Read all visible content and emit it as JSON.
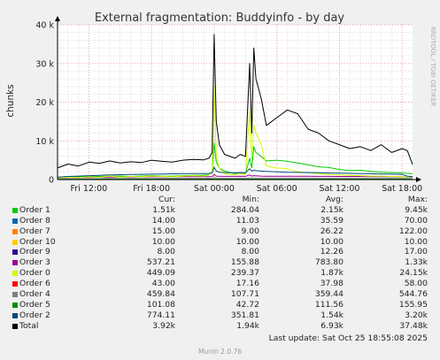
{
  "chart_data": {
    "type": "line",
    "title": "External fragmentation: Buddyinfo - by day",
    "ylabel": "chunks",
    "xlabel": "",
    "ylim": [
      0,
      40000
    ],
    "y_ticks": [
      {
        "value": 0,
        "label": "0"
      },
      {
        "value": 10000,
        "label": "10 k"
      },
      {
        "value": 20000,
        "label": "20 k"
      },
      {
        "value": 30000,
        "label": "30 k"
      },
      {
        "value": 40000,
        "label": "40 k"
      }
    ],
    "xlim": [
      "Fri 09:00",
      "Sat 19:00"
    ],
    "x_ticks": [
      "Fri 12:00",
      "Fri 18:00",
      "Sat 00:00",
      "Sat 06:00",
      "Sat 12:00",
      "Sat 18:00"
    ],
    "grid": true,
    "x_hours": [
      9,
      10,
      11,
      12,
      13,
      14,
      15,
      16,
      17,
      18,
      19,
      20,
      21,
      22,
      23,
      23.5,
      23.8,
      24,
      24.2,
      24.5,
      25,
      26,
      26.5,
      27,
      27.4,
      27.6,
      27.8,
      28,
      28.5,
      29,
      30,
      31,
      32,
      33,
      34,
      35,
      36,
      37,
      38,
      39,
      40,
      41,
      42,
      42.5,
      43
    ],
    "series": [
      {
        "name": "Order 1",
        "color": "#00cc00",
        "values": [
          600,
          800,
          700,
          900,
          800,
          900,
          900,
          800,
          900,
          1000,
          900,
          900,
          1000,
          1100,
          1100,
          1300,
          2000,
          9450,
          4500,
          3000,
          2200,
          1500,
          1800,
          1600,
          5500,
          3000,
          8500,
          7000,
          6000,
          4800,
          5000,
          4700,
          4300,
          3800,
          3300,
          3100,
          2600,
          2300,
          2400,
          2100,
          1900,
          1800,
          1700,
          1600,
          1510
        ]
      },
      {
        "name": "Order 8",
        "color": "#0066b3",
        "values": [
          40,
          40,
          40,
          40,
          40,
          40,
          40,
          40,
          40,
          40,
          40,
          40,
          40,
          40,
          40,
          40,
          40,
          70,
          40,
          40,
          40,
          40,
          40,
          40,
          40,
          40,
          40,
          40,
          40,
          40,
          40,
          40,
          40,
          40,
          40,
          40,
          40,
          40,
          40,
          40,
          40,
          40,
          40,
          30,
          14
        ]
      },
      {
        "name": "Order 7",
        "color": "#ff8000",
        "values": [
          20,
          25,
          25,
          25,
          25,
          25,
          25,
          25,
          25,
          25,
          25,
          25,
          25,
          25,
          25,
          25,
          25,
          122,
          30,
          30,
          28,
          28,
          28,
          28,
          60,
          40,
          40,
          35,
          30,
          30,
          30,
          28,
          28,
          28,
          28,
          28,
          28,
          26,
          26,
          26,
          25,
          25,
          25,
          20,
          15
        ]
      },
      {
        "name": "Order 10",
        "color": "#ffcc00",
        "values": [
          10,
          10,
          10,
          10,
          10,
          10,
          10,
          10,
          10,
          10,
          10,
          10,
          10,
          10,
          10,
          10,
          10,
          10,
          10,
          10,
          10,
          10,
          10,
          10,
          10,
          10,
          10,
          10,
          10,
          10,
          10,
          10,
          10,
          10,
          10,
          10,
          10,
          10,
          10,
          10,
          10,
          10,
          10,
          10,
          10
        ]
      },
      {
        "name": "Order 9",
        "color": "#330099",
        "values": [
          10,
          10,
          12,
          12,
          12,
          12,
          12,
          12,
          12,
          12,
          12,
          12,
          12,
          12,
          12,
          12,
          12,
          17,
          12,
          12,
          12,
          12,
          12,
          12,
          12,
          12,
          12,
          12,
          12,
          12,
          12,
          12,
          12,
          12,
          12,
          12,
          12,
          12,
          12,
          12,
          12,
          12,
          12,
          10,
          8
        ]
      },
      {
        "name": "Order 3",
        "color": "#990099",
        "values": [
          500,
          550,
          560,
          600,
          620,
          640,
          650,
          660,
          680,
          700,
          700,
          710,
          720,
          720,
          730,
          740,
          800,
          1330,
          900,
          850,
          830,
          820,
          850,
          830,
          1200,
          900,
          1000,
          950,
          900,
          880,
          870,
          860,
          850,
          840,
          830,
          820,
          810,
          800,
          790,
          780,
          770,
          760,
          750,
          600,
          537
        ]
      },
      {
        "name": "Order 0",
        "color": "#ccff00",
        "values": [
          400,
          600,
          500,
          700,
          600,
          900,
          600,
          800,
          700,
          900,
          800,
          700,
          900,
          1000,
          900,
          1200,
          2000,
          24150,
          6000,
          3000,
          1500,
          1200,
          1500,
          1300,
          18000,
          5000,
          14000,
          12000,
          9000,
          3500,
          3000,
          2800,
          2000,
          1800,
          1500,
          1300,
          1200,
          1100,
          1000,
          900,
          900,
          800,
          700,
          600,
          449
        ]
      },
      {
        "name": "Order 6",
        "color": "#ff0000",
        "values": [
          20,
          25,
          25,
          30,
          30,
          30,
          30,
          30,
          30,
          30,
          30,
          35,
          35,
          35,
          35,
          35,
          35,
          58,
          40,
          40,
          38,
          38,
          38,
          38,
          45,
          40,
          40,
          40,
          40,
          40,
          40,
          40,
          40,
          40,
          40,
          40,
          40,
          40,
          40,
          40,
          40,
          40,
          40,
          40,
          43
        ]
      },
      {
        "name": "Order 4",
        "color": "#808080",
        "values": [
          200,
          220,
          230,
          250,
          260,
          270,
          280,
          290,
          300,
          300,
          310,
          310,
          320,
          320,
          330,
          340,
          360,
          544.76,
          400,
          380,
          370,
          370,
          380,
          370,
          450,
          400,
          420,
          410,
          400,
          390,
          380,
          380,
          380,
          380,
          380,
          380,
          380,
          380,
          380,
          380,
          380,
          380,
          380,
          420,
          459.84
        ]
      },
      {
        "name": "Order 5",
        "color": "#008f00",
        "values": [
          60,
          70,
          70,
          80,
          80,
          85,
          85,
          90,
          90,
          95,
          95,
          100,
          100,
          100,
          105,
          105,
          110,
          155.95,
          120,
          118,
          116,
          115,
          116,
          115,
          130,
          120,
          122,
          120,
          118,
          117,
          116,
          115,
          114,
          113,
          112,
          111,
          110,
          109,
          108,
          107,
          106,
          105,
          104,
          103,
          101.08
        ]
      },
      {
        "name": "Order 2",
        "color": "#00487d",
        "values": [
          600,
          800,
          900,
          1000,
          1100,
          1200,
          1250,
          1300,
          1350,
          1400,
          1450,
          1480,
          1500,
          1520,
          1550,
          1580,
          1700,
          3200,
          2200,
          1900,
          1800,
          1750,
          1800,
          1780,
          2800,
          2200,
          2400,
          2300,
          2200,
          2100,
          2000,
          1900,
          1850,
          1800,
          1750,
          1700,
          1650,
          1600,
          1550,
          1500,
          1450,
          1400,
          1300,
          900,
          774.11
        ]
      },
      {
        "name": "Total",
        "color": "#000000",
        "values": [
          3000,
          4000,
          3500,
          4500,
          4200,
          4800,
          4300,
          4600,
          4400,
          5000,
          4700,
          4500,
          5000,
          5200,
          5100,
          5500,
          7000,
          37480,
          15000,
          9000,
          6500,
          5500,
          6500,
          6000,
          30000,
          12000,
          34000,
          26000,
          21000,
          14000,
          16000,
          18000,
          17000,
          13000,
          12000,
          10000,
          9000,
          8000,
          8500,
          7500,
          9000,
          7000,
          8000,
          7500,
          3920
        ]
      }
    ],
    "legend": {
      "columns": [
        "Cur:",
        "Min:",
        "Avg:",
        "Max:"
      ],
      "rows": [
        {
          "name": "Order 1",
          "color": "#00cc00",
          "cur": "1.51k",
          "min": "284.04",
          "avg": "2.15k",
          "max": "9.45k"
        },
        {
          "name": "Order 8",
          "color": "#0066b3",
          "cur": "14.00",
          "min": "11.03",
          "avg": "35.59",
          "max": "70.00"
        },
        {
          "name": "Order 7",
          "color": "#ff8000",
          "cur": "15.00",
          "min": "9.00",
          "avg": "26.22",
          "max": "122.00"
        },
        {
          "name": "Order 10",
          "color": "#ffcc00",
          "cur": "10.00",
          "min": "10.00",
          "avg": "10.00",
          "max": "10.00"
        },
        {
          "name": "Order 9",
          "color": "#330099",
          "cur": "8.00",
          "min": "8.00",
          "avg": "12.26",
          "max": "17.00"
        },
        {
          "name": "Order 3",
          "color": "#990099",
          "cur": "537.21",
          "min": "155.88",
          "avg": "783.80",
          "max": "1.33k"
        },
        {
          "name": "Order 0",
          "color": "#ccff00",
          "cur": "449.09",
          "min": "239.37",
          "avg": "1.87k",
          "max": "24.15k"
        },
        {
          "name": "Order 6",
          "color": "#ff0000",
          "cur": "43.00",
          "min": "17.16",
          "avg": "37.98",
          "max": "58.00"
        },
        {
          "name": "Order 4",
          "color": "#808080",
          "cur": "459.84",
          "min": "107.71",
          "avg": "359.44",
          "max": "544.76"
        },
        {
          "name": "Order 5",
          "color": "#008f00",
          "cur": "101.08",
          "min": "42.72",
          "avg": "111.56",
          "max": "155.95"
        },
        {
          "name": "Order 2",
          "color": "#00487d",
          "cur": "774.11",
          "min": "351.81",
          "avg": "1.54k",
          "max": "3.20k"
        },
        {
          "name": "Total",
          "color": "#000000",
          "cur": "3.92k",
          "min": "1.94k",
          "avg": "6.93k",
          "max": "37.48k"
        }
      ]
    },
    "side_label": "RRDTOOL / TOBI OETIKER"
  },
  "footer": {
    "last_update": "Last update: Sat Oct 25 18:55:08 2025",
    "version": "Munin 2.0.76"
  }
}
